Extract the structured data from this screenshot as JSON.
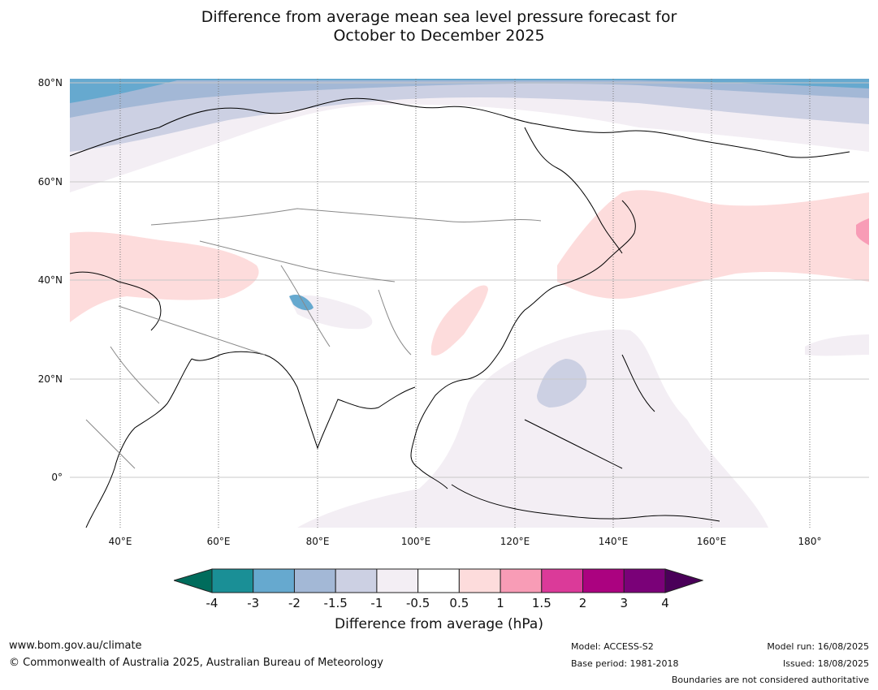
{
  "title_line1": "Difference from average mean sea level pressure forecast for",
  "title_line2": "October to December 2025",
  "latitudes": [
    "80°N",
    "60°N",
    "40°N",
    "20°N",
    "0°"
  ],
  "longitudes": [
    "40°E",
    "60°E",
    "80°E",
    "100°E",
    "120°E",
    "140°E",
    "160°E",
    "180°"
  ],
  "legend": {
    "title": "Difference from average (hPa)",
    "ticks": [
      "-4",
      "-3",
      "-2",
      "-1.5",
      "-1",
      "-0.5",
      "0.5",
      "1",
      "1.5",
      "2",
      "3",
      "4"
    ],
    "colors": [
      "#1a8f96",
      "#66a9cf",
      "#a3b8d6",
      "#ccd0e3",
      "#f3eef4",
      "#ffffff",
      "#fddcdc",
      "#f89cb6",
      "#db3a99",
      "#ab0280",
      "#7a0178"
    ],
    "low_color": "#006c5c",
    "high_color": "#4a0059"
  },
  "footer": {
    "website": "www.bom.gov.au/climate",
    "copyright": "© Commonwealth of Australia 2025, Australian Bureau of Meteorology",
    "model": "Model: ACCESS-S2",
    "base_period": "Base period: 1981-2018",
    "model_run": "Model run: 16/08/2025",
    "issued": "Issued: 18/08/2025",
    "disclaimer": "Boundaries are not considered authoritative"
  }
}
